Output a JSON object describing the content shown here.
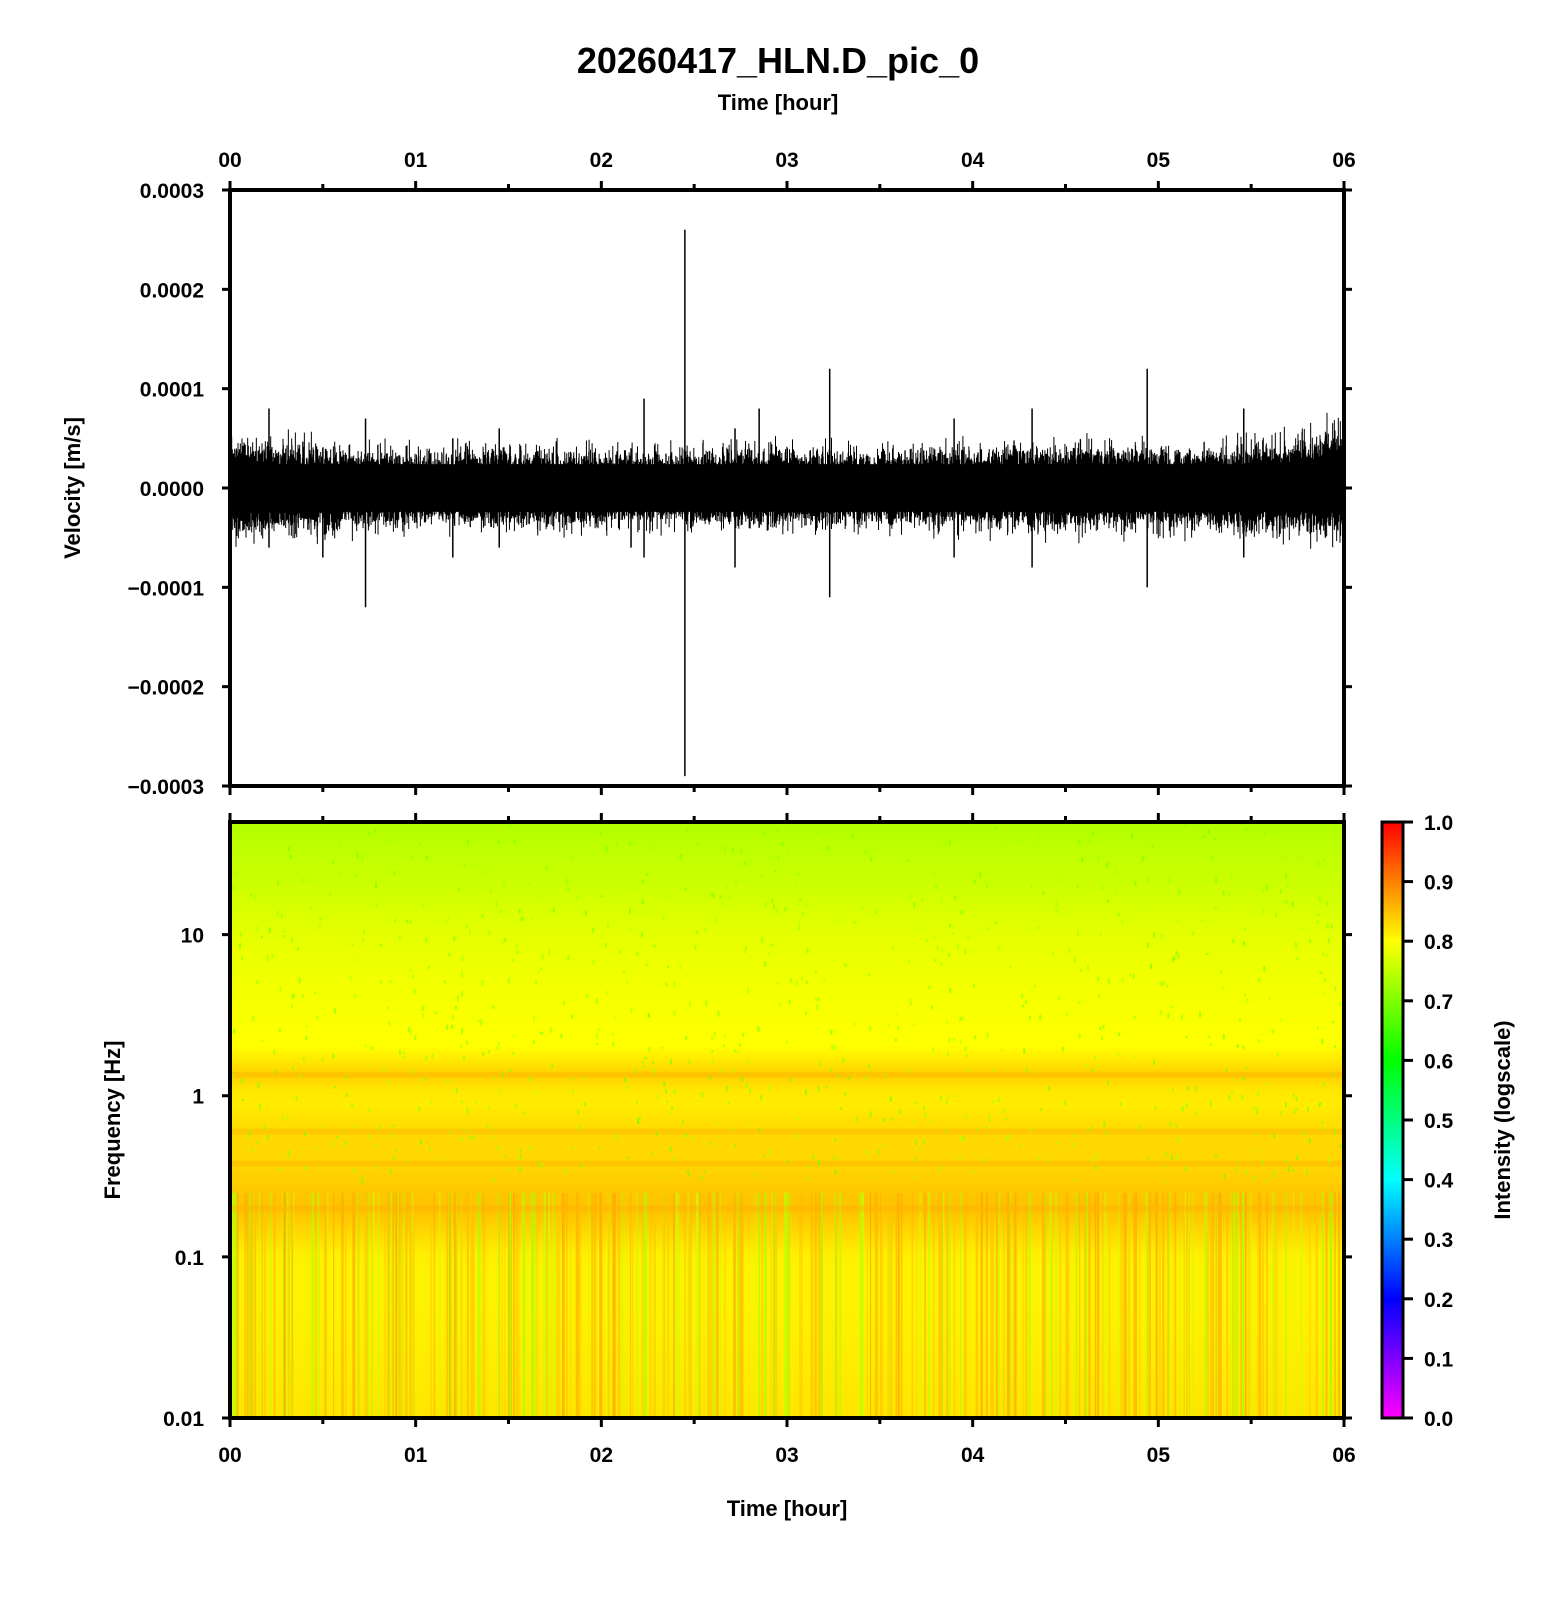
{
  "title": "20260417_HLN.D_pic_0",
  "top_axis_label": "Time [hour]",
  "bottom_axis_label": "Time [hour]",
  "time_ticks": [
    "00",
    "01",
    "02",
    "03",
    "04",
    "05",
    "06"
  ],
  "colorbar": {
    "label": "Intensity (logscale)",
    "ticks": [
      "0.0",
      "0.1",
      "0.2",
      "0.3",
      "0.4",
      "0.5",
      "0.6",
      "0.7",
      "0.8",
      "0.9",
      "1.0"
    ],
    "colors": [
      "#ff00ff",
      "#8000ff",
      "#0000ff",
      "#0080ff",
      "#00ffff",
      "#00ff80",
      "#00ff00",
      "#80ff00",
      "#ffff00",
      "#ff8000",
      "#ff0000"
    ]
  },
  "chart_data": [
    {
      "type": "line",
      "panel": "waveform",
      "xlabel": "Time [hour]",
      "ylabel": "Velocity [m/s]",
      "xlim": [
        0,
        6
      ],
      "ylim": [
        -0.0003,
        0.0003
      ],
      "x_ticks": [
        "00",
        "01",
        "02",
        "03",
        "04",
        "05",
        "06"
      ],
      "y_ticks": [
        "0.0003",
        "0.0002",
        "0.0001",
        "0.0000",
        "−0.0001",
        "−0.0002",
        "−0.0003"
      ],
      "noise_envelope": {
        "x": [
          0,
          0.5,
          1,
          1.5,
          2,
          2.5,
          3,
          3.5,
          4,
          4.5,
          5,
          5.5,
          6
        ],
        "upper": [
          4e-05,
          3.5e-05,
          3e-05,
          3.3e-05,
          3e-05,
          3e-05,
          3.3e-05,
          3e-05,
          3.3e-05,
          3.5e-05,
          3.3e-05,
          3.5e-05,
          5e-05
        ],
        "lower": [
          -4e-05,
          -3.5e-05,
          -3e-05,
          -3.3e-05,
          -3e-05,
          -3e-05,
          -3.3e-05,
          -3e-05,
          -3.3e-05,
          -3.5e-05,
          -3.3e-05,
          -3.5e-05,
          -4e-05
        ]
      },
      "spikes": [
        {
          "x": 0.21,
          "max": 8e-05,
          "min": -6e-05
        },
        {
          "x": 0.5,
          "max": 4e-05,
          "min": -7e-05
        },
        {
          "x": 0.73,
          "max": 7e-05,
          "min": -0.00012
        },
        {
          "x": 1.2,
          "max": 5e-05,
          "min": -7e-05
        },
        {
          "x": 1.45,
          "max": 6e-05,
          "min": -6e-05
        },
        {
          "x": 2.16,
          "max": 4e-05,
          "min": -6e-05
        },
        {
          "x": 2.23,
          "max": 9e-05,
          "min": -7e-05
        },
        {
          "x": 2.45,
          "max": 0.00026,
          "min": -0.00029
        },
        {
          "x": 2.72,
          "max": 6e-05,
          "min": -8e-05
        },
        {
          "x": 2.85,
          "max": 8e-05,
          "min": -4e-05
        },
        {
          "x": 3.23,
          "max": 0.00012,
          "min": -0.00011
        },
        {
          "x": 3.9,
          "max": 7e-05,
          "min": -7e-05
        },
        {
          "x": 4.32,
          "max": 8e-05,
          "min": -8e-05
        },
        {
          "x": 4.94,
          "max": 0.00012,
          "min": -0.0001
        },
        {
          "x": 5.46,
          "max": 8e-05,
          "min": -7e-05
        },
        {
          "x": 5.9,
          "max": 5e-05,
          "min": -5e-05
        }
      ]
    },
    {
      "type": "heatmap",
      "panel": "spectrogram",
      "xlabel": "Time [hour]",
      "ylabel": "Frequency [Hz]",
      "xlim": [
        0,
        6
      ],
      "ylim": [
        0.01,
        50
      ],
      "y_scale": "log",
      "y_ticks": [
        "10",
        "1",
        "0.1",
        "0.01"
      ],
      "colorbar_label": "Intensity (logscale)",
      "clim": [
        0,
        1
      ],
      "intensity_by_frequency": {
        "frequency": [
          50,
          20,
          10,
          5,
          2,
          1.3,
          1,
          0.6,
          0.4,
          0.2,
          0.1,
          0.05,
          0.01
        ],
        "intensity": [
          0.74,
          0.76,
          0.78,
          0.79,
          0.8,
          0.84,
          0.81,
          0.83,
          0.83,
          0.85,
          0.81,
          0.81,
          0.82
        ]
      }
    }
  ]
}
